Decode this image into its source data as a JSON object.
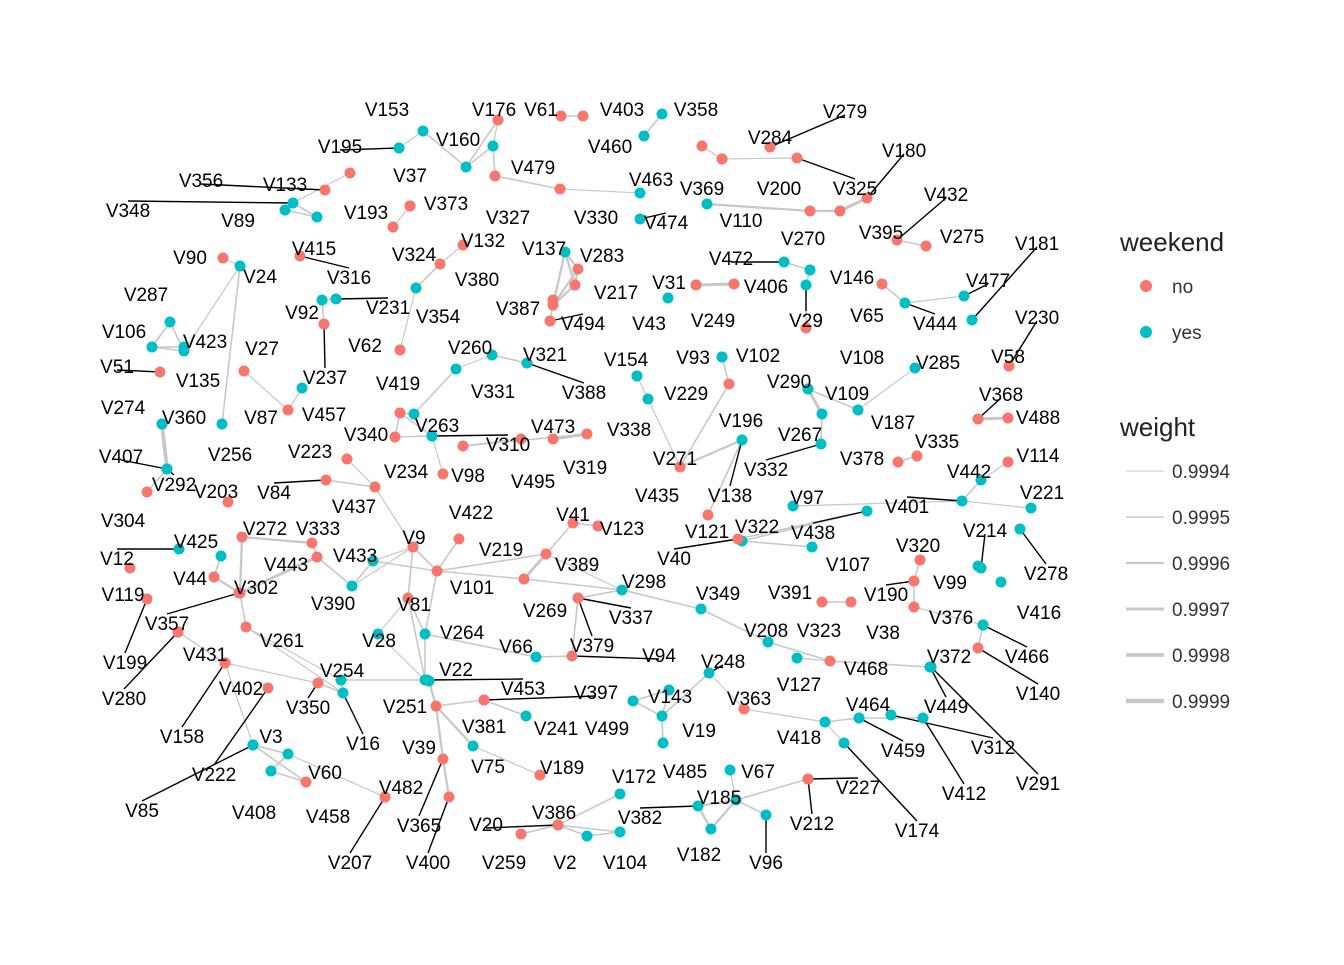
{
  "legend": {
    "color_title": "weekend",
    "color_items": [
      {
        "label": "no",
        "color": "#F8766D"
      },
      {
        "label": "yes",
        "color": "#00BFC4"
      }
    ],
    "weight_title": "weight",
    "weight_items": [
      "0.9994",
      "0.9995",
      "0.9996",
      "0.9997",
      "0.9998",
      "0.9999"
    ]
  },
  "colors": {
    "no": "#F8766D",
    "yes": "#00BFC4",
    "edge": "#c8c8c8",
    "leader": "#000000"
  },
  "network": {
    "nodes": [
      {
        "id": "V153",
        "w": "yes"
      },
      {
        "id": "V195",
        "w": "yes"
      },
      {
        "id": "V160",
        "w": "yes"
      },
      {
        "id": "V176",
        "w": "no"
      },
      {
        "id": "V61",
        "w": "no"
      },
      {
        "id": "V403",
        "w": "no"
      },
      {
        "id": "V358",
        "w": "yes"
      },
      {
        "id": "V460",
        "w": "yes"
      },
      {
        "id": "V279",
        "w": "no"
      },
      {
        "id": "V284",
        "w": "no"
      },
      {
        "id": "V369",
        "w": "no"
      },
      {
        "id": "V200",
        "w": "no"
      },
      {
        "id": "V325",
        "w": "no"
      },
      {
        "id": "V180",
        "w": "no"
      },
      {
        "id": "V37",
        "w": "yes"
      },
      {
        "id": "V479",
        "w": "yes"
      },
      {
        "id": "V356",
        "w": "no"
      },
      {
        "id": "V133",
        "w": "no"
      },
      {
        "id": "V348",
        "w": "yes"
      },
      {
        "id": "V89",
        "w": "yes"
      },
      {
        "id": "V415",
        "w": "yes"
      },
      {
        "id": "V193",
        "w": "no"
      },
      {
        "id": "V373",
        "w": "no"
      },
      {
        "id": "V327",
        "w": "no"
      },
      {
        "id": "V330",
        "w": "no"
      },
      {
        "id": "V463",
        "w": "yes"
      },
      {
        "id": "V474",
        "w": "yes"
      },
      {
        "id": "V110",
        "w": "yes"
      },
      {
        "id": "V270",
        "w": "no"
      },
      {
        "id": "V395",
        "w": "no"
      },
      {
        "id": "V432",
        "w": "no"
      },
      {
        "id": "V275",
        "w": "no"
      },
      {
        "id": "V324",
        "w": "no"
      },
      {
        "id": "V132",
        "w": "no"
      },
      {
        "id": "V137",
        "w": "yes"
      },
      {
        "id": "V283",
        "w": "no"
      },
      {
        "id": "V316",
        "w": "no"
      },
      {
        "id": "V90",
        "w": "no"
      },
      {
        "id": "V24",
        "w": "yes"
      },
      {
        "id": "V380",
        "w": "no"
      },
      {
        "id": "V217",
        "w": "no"
      },
      {
        "id": "V472",
        "w": "yes"
      },
      {
        "id": "V406",
        "w": "no"
      },
      {
        "id": "V146",
        "w": "yes"
      },
      {
        "id": "V181",
        "w": "yes"
      },
      {
        "id": "V287",
        "w": "yes"
      },
      {
        "id": "V92",
        "w": "yes"
      },
      {
        "id": "V231",
        "w": "yes"
      },
      {
        "id": "V354",
        "w": "yes"
      },
      {
        "id": "V387",
        "w": "no"
      },
      {
        "id": "V31",
        "w": "yes"
      },
      {
        "id": "V249",
        "w": "no"
      },
      {
        "id": "V65",
        "w": "no"
      },
      {
        "id": "V477",
        "w": "yes"
      },
      {
        "id": "V106",
        "w": "yes"
      },
      {
        "id": "V423",
        "w": "yes"
      },
      {
        "id": "V62",
        "w": "no"
      },
      {
        "id": "V494",
        "w": "no"
      },
      {
        "id": "V43",
        "w": "yes"
      },
      {
        "id": "V29",
        "w": "yes"
      },
      {
        "id": "V444",
        "w": "yes"
      },
      {
        "id": "V230",
        "w": "no"
      },
      {
        "id": "V27",
        "w": "no"
      },
      {
        "id": "V237",
        "w": "no"
      },
      {
        "id": "V260",
        "w": "yes"
      },
      {
        "id": "V321",
        "w": "no"
      },
      {
        "id": "V93",
        "w": "yes"
      },
      {
        "id": "V102",
        "w": "yes"
      },
      {
        "id": "V108",
        "w": "no"
      },
      {
        "id": "V285",
        "w": "yes"
      },
      {
        "id": "V58",
        "w": "no"
      },
      {
        "id": "V51",
        "w": "no"
      },
      {
        "id": "V135",
        "w": "yes"
      },
      {
        "id": "V419",
        "w": "yes"
      },
      {
        "id": "V331",
        "w": "yes"
      },
      {
        "id": "V388",
        "w": "yes"
      },
      {
        "id": "V154",
        "w": "no"
      },
      {
        "id": "V229",
        "w": "yes"
      },
      {
        "id": "V290",
        "w": "yes"
      },
      {
        "id": "V368",
        "w": "no"
      },
      {
        "id": "V274",
        "w": "yes"
      },
      {
        "id": "V360",
        "w": "yes"
      },
      {
        "id": "V87",
        "w": "no"
      },
      {
        "id": "V457",
        "w": "yes"
      },
      {
        "id": "V109",
        "w": "yes"
      },
      {
        "id": "V488",
        "w": "no"
      },
      {
        "id": "V340",
        "w": "no"
      },
      {
        "id": "V263",
        "w": "yes"
      },
      {
        "id": "V473",
        "w": "no"
      },
      {
        "id": "V338",
        "w": "yes"
      },
      {
        "id": "V196",
        "w": "no"
      },
      {
        "id": "V187",
        "w": "yes"
      },
      {
        "id": "V407",
        "w": "yes"
      },
      {
        "id": "V256",
        "w": "yes"
      },
      {
        "id": "V223",
        "w": "no"
      },
      {
        "id": "V310",
        "w": "yes"
      },
      {
        "id": "V267",
        "w": "yes"
      },
      {
        "id": "V335",
        "w": "no"
      },
      {
        "id": "V114",
        "w": "no"
      },
      {
        "id": "V292",
        "w": "yes"
      },
      {
        "id": "V234",
        "w": "no"
      },
      {
        "id": "V319",
        "w": "no"
      },
      {
        "id": "V271",
        "w": "no"
      },
      {
        "id": "V332",
        "w": "yes"
      },
      {
        "id": "V378",
        "w": "no"
      },
      {
        "id": "V442",
        "w": "yes"
      },
      {
        "id": "V304",
        "w": "no"
      },
      {
        "id": "V84",
        "w": "no"
      },
      {
        "id": "V98",
        "w": "no"
      },
      {
        "id": "V495",
        "w": "no"
      },
      {
        "id": "V435",
        "w": "no"
      },
      {
        "id": "V138",
        "w": "yes"
      },
      {
        "id": "V203",
        "w": "no"
      },
      {
        "id": "V437",
        "w": "no"
      },
      {
        "id": "V422",
        "w": "no"
      },
      {
        "id": "V97",
        "w": "yes"
      },
      {
        "id": "V401",
        "w": "yes"
      },
      {
        "id": "V221",
        "w": "yes"
      },
      {
        "id": "V272",
        "w": "no"
      },
      {
        "id": "V333",
        "w": "no"
      },
      {
        "id": "V41",
        "w": "no"
      },
      {
        "id": "V123",
        "w": "no"
      },
      {
        "id": "V121",
        "w": "no"
      },
      {
        "id": "V322",
        "w": "yes"
      },
      {
        "id": "V438",
        "w": "yes"
      },
      {
        "id": "V214",
        "w": "yes"
      },
      {
        "id": "V425",
        "w": "yes"
      },
      {
        "id": "V9",
        "w": "no"
      },
      {
        "id": "V219",
        "w": "no"
      },
      {
        "id": "V12",
        "w": "yes"
      },
      {
        "id": "V443",
        "w": "no"
      },
      {
        "id": "V433",
        "w": "yes"
      },
      {
        "id": "V389",
        "w": "no"
      },
      {
        "id": "V40",
        "w": "no"
      },
      {
        "id": "V107",
        "w": "yes"
      },
      {
        "id": "V320",
        "w": "no"
      },
      {
        "id": "V44",
        "w": "no"
      },
      {
        "id": "V101",
        "w": "no"
      },
      {
        "id": "V278",
        "w": "yes"
      },
      {
        "id": "V119",
        "w": "no"
      },
      {
        "id": "V302",
        "w": "no"
      },
      {
        "id": "V390",
        "w": "yes"
      },
      {
        "id": "V269",
        "w": "no"
      },
      {
        "id": "V298",
        "w": "yes"
      },
      {
        "id": "V349",
        "w": "yes"
      },
      {
        "id": "V391",
        "w": "no"
      },
      {
        "id": "V190",
        "w": "no"
      },
      {
        "id": "V99",
        "w": "yes"
      },
      {
        "id": "V81",
        "w": "no"
      },
      {
        "id": "V416",
        "w": "yes"
      },
      {
        "id": "V357",
        "w": "no"
      },
      {
        "id": "V199",
        "w": "no"
      },
      {
        "id": "V261",
        "w": "no"
      },
      {
        "id": "V264",
        "w": "yes"
      },
      {
        "id": "V337",
        "w": "yes"
      },
      {
        "id": "V208",
        "w": "yes"
      },
      {
        "id": "V323",
        "w": "no"
      },
      {
        "id": "V38",
        "w": "no"
      },
      {
        "id": "V376",
        "w": "yes"
      },
      {
        "id": "V28",
        "w": "yes"
      },
      {
        "id": "V66",
        "w": "yes"
      },
      {
        "id": "V379",
        "w": "no"
      },
      {
        "id": "V94",
        "w": "no"
      },
      {
        "id": "V248",
        "w": "yes"
      },
      {
        "id": "V466",
        "w": "yes"
      },
      {
        "id": "V431",
        "w": "no"
      },
      {
        "id": "V280",
        "w": "no"
      },
      {
        "id": "V468",
        "w": "no"
      },
      {
        "id": "V372",
        "w": "yes"
      },
      {
        "id": "V127",
        "w": "yes"
      },
      {
        "id": "V254",
        "w": "yes"
      },
      {
        "id": "V22",
        "w": "yes"
      },
      {
        "id": "V140",
        "w": "no"
      },
      {
        "id": "V402",
        "w": "no"
      },
      {
        "id": "V453",
        "w": "yes"
      },
      {
        "id": "V397",
        "w": "no"
      },
      {
        "id": "V143",
        "w": "yes"
      },
      {
        "id": "V363",
        "w": "no"
      },
      {
        "id": "V449",
        "w": "yes"
      },
      {
        "id": "V350",
        "w": "no"
      },
      {
        "id": "V464",
        "w": "yes"
      },
      {
        "id": "V158",
        "w": "no"
      },
      {
        "id": "V16",
        "w": "yes"
      },
      {
        "id": "V251",
        "w": "yes"
      },
      {
        "id": "V381",
        "w": "no"
      },
      {
        "id": "V241",
        "w": "yes"
      },
      {
        "id": "V499",
        "w": "yes"
      },
      {
        "id": "V19",
        "w": "yes"
      },
      {
        "id": "V418",
        "w": "yes"
      },
      {
        "id": "V459",
        "w": "yes"
      },
      {
        "id": "V312",
        "w": "yes"
      },
      {
        "id": "V3",
        "w": "yes"
      },
      {
        "id": "V39",
        "w": "no"
      },
      {
        "id": "V291",
        "w": "yes"
      },
      {
        "id": "V222",
        "w": "no"
      },
      {
        "id": "V60",
        "w": "yes"
      },
      {
        "id": "V75",
        "w": "yes"
      },
      {
        "id": "V189",
        "w": "no"
      },
      {
        "id": "V172",
        "w": "yes"
      },
      {
        "id": "V485",
        "w": "yes"
      },
      {
        "id": "V67",
        "w": "yes"
      },
      {
        "id": "V227",
        "w": "no"
      },
      {
        "id": "V412",
        "w": "yes"
      },
      {
        "id": "V85",
        "w": "yes"
      },
      {
        "id": "V482",
        "w": "no"
      },
      {
        "id": "V185",
        "w": "yes"
      },
      {
        "id": "V408",
        "w": "yes"
      },
      {
        "id": "V458",
        "w": "no"
      },
      {
        "id": "V386",
        "w": "yes"
      },
      {
        "id": "V382",
        "w": "yes"
      },
      {
        "id": "V212",
        "w": "no"
      },
      {
        "id": "V174",
        "w": "yes"
      },
      {
        "id": "V365",
        "w": "no"
      },
      {
        "id": "V20",
        "w": "no"
      },
      {
        "id": "V207",
        "w": "no"
      },
      {
        "id": "V400",
        "w": "no"
      },
      {
        "id": "V259",
        "w": "no"
      },
      {
        "id": "V2",
        "w": "yes"
      },
      {
        "id": "V104",
        "w": "yes"
      },
      {
        "id": "V182",
        "w": "yes"
      },
      {
        "id": "V96",
        "w": "yes"
      }
    ]
  }
}
